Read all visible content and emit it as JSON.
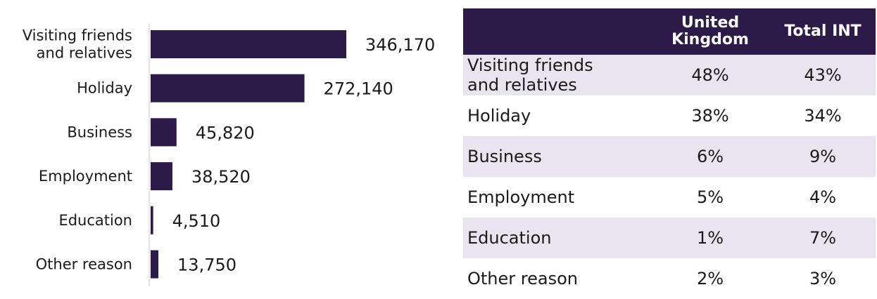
{
  "chart_data": [
    {
      "type": "bar",
      "orientation": "horizontal",
      "categories": [
        "Visiting friends and relatives",
        "Holiday",
        "Business",
        "Employment",
        "Education",
        "Other reason"
      ],
      "category_labels": [
        [
          "Visiting friends",
          "and relatives"
        ],
        [
          "Holiday"
        ],
        [
          "Business"
        ],
        [
          "Employment"
        ],
        [
          "Education"
        ],
        [
          "Other reason"
        ]
      ],
      "values": [
        346170,
        272140,
        45820,
        38520,
        4510,
        13750
      ],
      "value_labels": [
        "346,170",
        "272,140",
        "45,820",
        "38,520",
        "4,510",
        "13,750"
      ],
      "title": "",
      "xlabel": "",
      "ylabel": "",
      "bar_color": "#2c1a48",
      "axis_color": "#c8c8c8",
      "grid": false,
      "legend": "none"
    },
    {
      "type": "table",
      "columns": [
        "",
        "United Kingdom",
        "Total INT"
      ],
      "rows": [
        {
          "label": "Visiting friends and relatives",
          "uk": "48%",
          "total": "43%"
        },
        {
          "label": "Holiday",
          "uk": "38%",
          "total": "34%"
        },
        {
          "label": "Business",
          "uk": "6%",
          "total": "9%"
        },
        {
          "label": "Employment",
          "uk": "5%",
          "total": "4%"
        },
        {
          "label": "Education",
          "uk": "1%",
          "total": "7%"
        },
        {
          "label": "Other reason",
          "uk": "2%",
          "total": "3%"
        }
      ],
      "header_color": "#2c1a48",
      "band_color": "#e9e4ef"
    }
  ]
}
